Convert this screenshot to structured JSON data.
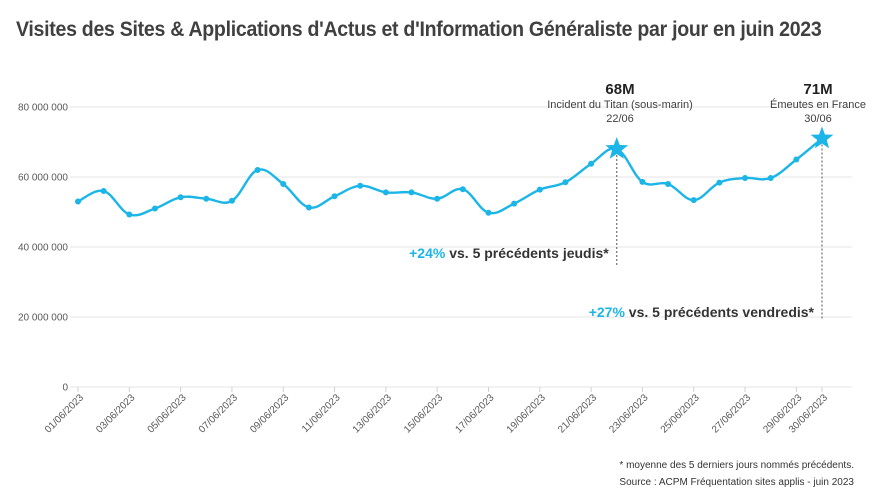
{
  "title": "Visites des Sites & Applications d'Actus et d'Information Généraliste par jour en juin 2023",
  "footnotes": {
    "note": "* moyenne des 5 derniers jours nommés précédents.",
    "source": "Source : ACPM Fréquentation sites applis - juin 2023"
  },
  "colors": {
    "series": "#1cb5e8",
    "grid": "#e6e6e6",
    "text": "#404040",
    "highlight": "#1cb5e8"
  },
  "chart_data": {
    "type": "line",
    "title": "Visites des Sites & Applications d'Actus et d'Information Généraliste par jour en juin 2023",
    "xlabel": "",
    "ylabel": "",
    "ylim": [
      0,
      90000000
    ],
    "grid": true,
    "legend": "none",
    "y_ticks": [
      0,
      20000000,
      40000000,
      60000000,
      80000000
    ],
    "y_tick_labels": [
      "0",
      "20 000 000",
      "40 000 000",
      "60 000 000",
      "80 000 000"
    ],
    "x_tick_labels": [
      "01/06/2023",
      "03/06/2023",
      "05/06/2023",
      "07/06/2023",
      "09/06/2023",
      "11/06/2023",
      "13/06/2023",
      "15/06/2023",
      "17/06/2023",
      "19/06/2023",
      "21/06/2023",
      "23/06/2023",
      "25/06/2023",
      "27/06/2023",
      "29/06/2023",
      "30/06/2023"
    ],
    "x": [
      "01/06/2023",
      "02/06/2023",
      "03/06/2023",
      "04/06/2023",
      "05/06/2023",
      "06/06/2023",
      "07/06/2023",
      "08/06/2023",
      "09/06/2023",
      "10/06/2023",
      "11/06/2023",
      "12/06/2023",
      "13/06/2023",
      "14/06/2023",
      "15/06/2023",
      "16/06/2023",
      "17/06/2023",
      "18/06/2023",
      "19/06/2023",
      "20/06/2023",
      "21/06/2023",
      "22/06/2023",
      "23/06/2023",
      "24/06/2023",
      "25/06/2023",
      "26/06/2023",
      "27/06/2023",
      "28/06/2023",
      "29/06/2023",
      "30/06/2023"
    ],
    "values": [
      53000000,
      56000000,
      49300000,
      51000000,
      54200000,
      53800000,
      53200000,
      62000000,
      58000000,
      51300000,
      54500000,
      57500000,
      55600000,
      55600000,
      53800000,
      56500000,
      49800000,
      52400000,
      56400000,
      58500000,
      63800000,
      68000000,
      58600000,
      58000000,
      53400000,
      58400000,
      59700000,
      59700000,
      65000000,
      71000000
    ],
    "highlights": [
      {
        "date": "22/06",
        "x": "22/06/2023",
        "value_label": "68M",
        "event": "Incident du Titan (sous-marin)",
        "growth": "+24%",
        "comparison": "vs. 5 précédents jeudis*"
      },
      {
        "date": "30/06",
        "x": "30/06/2023",
        "value_label": "71M",
        "event": "Émeutes en France",
        "growth": "+27%",
        "comparison": "vs. 5 précédents vendredis*"
      }
    ]
  }
}
